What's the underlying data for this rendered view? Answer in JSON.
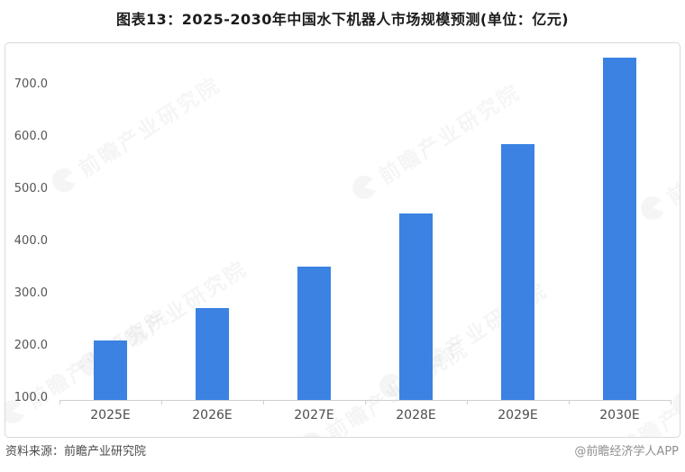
{
  "title": "图表13：2025-2030年中国水下机器人市场规模预测(单位：亿元)",
  "footer": {
    "source": "资料来源：前瞻产业研究院",
    "credit": "@前瞻经济学人APP"
  },
  "watermark": {
    "text": "前瞻产业研究院",
    "logo": "qianzhan-logo"
  },
  "colors": {
    "bar": "#3b82e2",
    "axis": "#cfcfcf",
    "tick_label": "#555555",
    "x_label": "#4d4d4d",
    "title": "#1b1b1b",
    "frame_border": "#d9d9d9",
    "source_text": "#4a4a4a",
    "credit_text": "#8f8f8f"
  },
  "chart_data": {
    "type": "bar",
    "title": "图表13：2025-2030年中国水下机器人市场规模预测(单位：亿元)",
    "unit": "亿元",
    "categories": [
      "2025E",
      "2026E",
      "2027E",
      "2028E",
      "2029E",
      "2030E"
    ],
    "values": [
      214,
      276,
      355,
      457,
      589,
      755
    ],
    "xlabel": "",
    "ylabel": "",
    "yticks": [
      100,
      200,
      300,
      400,
      500,
      600,
      700
    ],
    "ytick_labels": [
      "100.0",
      "200.0",
      "300.0",
      "400.0",
      "500.0",
      "600.0",
      "700.0"
    ],
    "ylim": [
      100,
      770
    ],
    "baseline": 100,
    "grid": false,
    "legend": null,
    "bar_color": "#3b82e2"
  }
}
